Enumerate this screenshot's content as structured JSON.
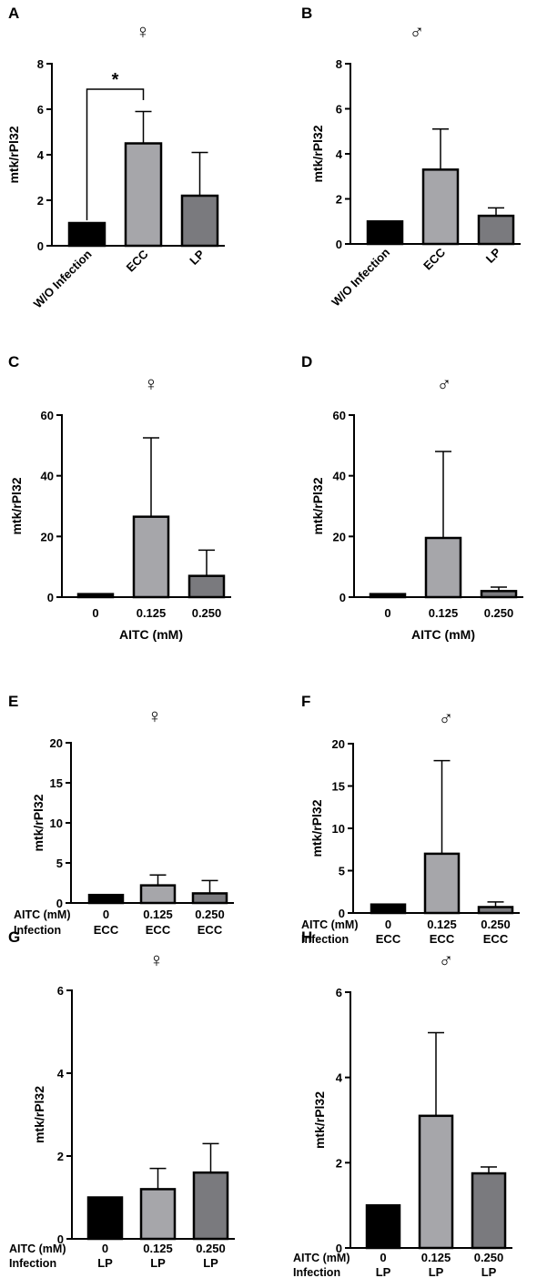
{
  "chart_data": [
    {
      "panel": "A",
      "sex_symbol": "♀",
      "type": "bar",
      "ylabel": "mtk/rPl32",
      "ylim": [
        0,
        8
      ],
      "yticks": [
        0,
        2,
        4,
        6,
        8
      ],
      "categories": [
        "W/O Infection",
        "ECC",
        "LP"
      ],
      "category_rotation": "rotated",
      "values": [
        1.0,
        4.5,
        2.2
      ],
      "errors": [
        0,
        1.4,
        1.9
      ],
      "colors": [
        "#000000",
        "#a6a6aa",
        "#7a7a7e"
      ],
      "significance": [
        {
          "from": 0,
          "to": 1,
          "label": "*"
        }
      ]
    },
    {
      "panel": "B",
      "sex_symbol": "♂",
      "type": "bar",
      "ylabel": "mtk/rPl32",
      "ylim": [
        0,
        8
      ],
      "yticks": [
        0,
        2,
        4,
        6,
        8
      ],
      "categories": [
        "W/O Infection",
        "ECC",
        "LP"
      ],
      "category_rotation": "rotated",
      "values": [
        1.0,
        3.3,
        1.25
      ],
      "errors": [
        0,
        1.8,
        0.35
      ],
      "colors": [
        "#000000",
        "#a6a6aa",
        "#7a7a7e"
      ]
    },
    {
      "panel": "C",
      "sex_symbol": "♀",
      "type": "bar",
      "ylabel": "mtk/rPl32",
      "xlabel": "AITC (mM)",
      "ylim": [
        0,
        60
      ],
      "yticks": [
        0,
        20,
        40,
        60
      ],
      "categories": [
        "0",
        "0.125",
        "0.250"
      ],
      "values": [
        1.0,
        26.5,
        7.0
      ],
      "errors": [
        0,
        26.0,
        8.5
      ],
      "colors": [
        "#000000",
        "#a6a6aa",
        "#7a7a7e"
      ]
    },
    {
      "panel": "D",
      "sex_symbol": "♂",
      "type": "bar",
      "ylabel": "mtk/rPl32",
      "xlabel": "AITC (mM)",
      "ylim": [
        0,
        60
      ],
      "yticks": [
        0,
        20,
        40,
        60
      ],
      "categories": [
        "0",
        "0.125",
        "0.250"
      ],
      "values": [
        1.0,
        19.5,
        2.0
      ],
      "errors": [
        0,
        28.5,
        1.3
      ],
      "colors": [
        "#000000",
        "#a6a6aa",
        "#7a7a7e"
      ]
    },
    {
      "panel": "E",
      "sex_symbol": "♀",
      "type": "bar",
      "ylabel": "mtk/rPl32",
      "ylim": [
        0,
        20
      ],
      "yticks": [
        0,
        5,
        10,
        15,
        20
      ],
      "row_labels": [
        "AITC (mM)",
        "Infection"
      ],
      "categories": [
        "0",
        "0.125",
        "0.250"
      ],
      "categories_row2": [
        "ECC",
        "ECC",
        "ECC"
      ],
      "values": [
        1.0,
        2.2,
        1.2
      ],
      "errors": [
        0,
        1.3,
        1.6
      ],
      "colors": [
        "#000000",
        "#a6a6aa",
        "#7a7a7e"
      ]
    },
    {
      "panel": "F",
      "sex_symbol": "♂",
      "type": "bar",
      "ylabel": "mtk/rPl32",
      "ylim": [
        0,
        20
      ],
      "yticks": [
        0,
        5,
        10,
        15,
        20
      ],
      "row_labels": [
        "AITC (mM)",
        "Infection"
      ],
      "categories": [
        "0",
        "0.125",
        "0.250"
      ],
      "categories_row2": [
        "ECC",
        "ECC",
        "ECC"
      ],
      "values": [
        1.0,
        7.0,
        0.7
      ],
      "errors": [
        0,
        11.0,
        0.6
      ],
      "colors": [
        "#000000",
        "#a6a6aa",
        "#7a7a7e"
      ]
    },
    {
      "panel": "G",
      "sex_symbol": "♀",
      "type": "bar",
      "ylabel": "mtk/rPl32",
      "ylim": [
        0,
        6
      ],
      "yticks": [
        0,
        2,
        4,
        6
      ],
      "row_labels": [
        "AITC (mM)",
        "Infection"
      ],
      "categories": [
        "0",
        "0.125",
        "0.250"
      ],
      "categories_row2": [
        "LP",
        "LP",
        "LP"
      ],
      "values": [
        1.0,
        1.2,
        1.6
      ],
      "errors": [
        0,
        0.5,
        0.7
      ],
      "colors": [
        "#000000",
        "#a6a6aa",
        "#7a7a7e"
      ]
    },
    {
      "panel": "H",
      "sex_symbol": "♂",
      "type": "bar",
      "ylabel": "mtk/rPl32",
      "ylim": [
        0,
        6
      ],
      "yticks": [
        0,
        2,
        4,
        6
      ],
      "row_labels": [
        "AITC (mM)",
        "Infection"
      ],
      "categories": [
        "0",
        "0.125",
        "0.250"
      ],
      "categories_row2": [
        "LP",
        "LP",
        "LP"
      ],
      "values": [
        1.0,
        3.1,
        1.75
      ],
      "errors": [
        0,
        1.95,
        0.15
      ],
      "colors": [
        "#000000",
        "#a6a6aa",
        "#7a7a7e"
      ]
    }
  ]
}
